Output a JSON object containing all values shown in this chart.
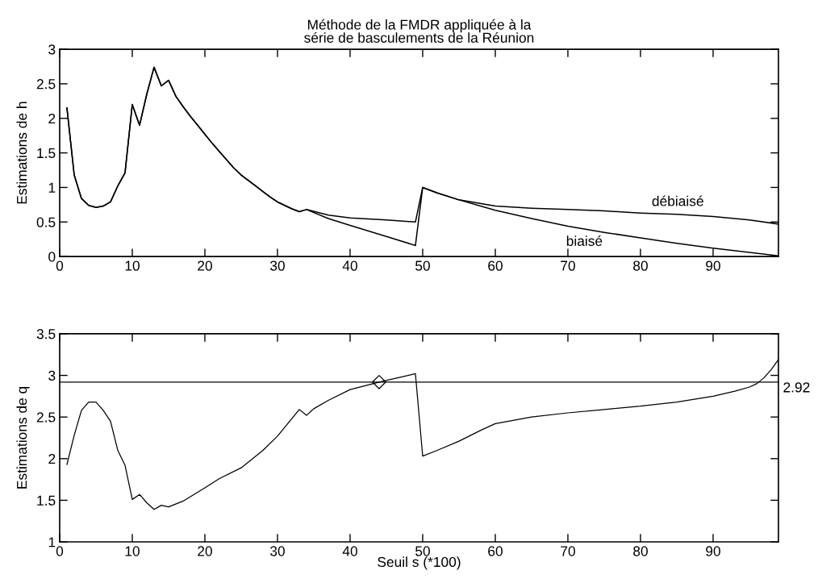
{
  "chart_data": [
    {
      "type": "line",
      "title": "Méthode de la FMDR appliquée à la\nsérie de basculements de la Réunion",
      "ylabel": "Estimations de h",
      "x": [
        1,
        2,
        3,
        4,
        5,
        6,
        7,
        8,
        9,
        10,
        11,
        12,
        13,
        14,
        15,
        16,
        17,
        18,
        19,
        20,
        21,
        22,
        23,
        24,
        25,
        26,
        27,
        28,
        29,
        30,
        31,
        32,
        33,
        34,
        37,
        40,
        45,
        49,
        50,
        52,
        55,
        60,
        65,
        70,
        75,
        80,
        85,
        90,
        95,
        99
      ],
      "series": [
        {
          "name": "débiaisé",
          "color": "#000000",
          "values": [
            2.15,
            1.18,
            0.84,
            0.74,
            0.71,
            0.73,
            0.79,
            1.02,
            1.21,
            2.2,
            1.9,
            2.35,
            2.74,
            2.47,
            2.55,
            2.32,
            2.17,
            2.03,
            1.9,
            1.77,
            1.64,
            1.52,
            1.4,
            1.28,
            1.18,
            1.1,
            1.02,
            0.94,
            0.86,
            0.79,
            0.74,
            0.69,
            0.65,
            0.68,
            0.6,
            0.56,
            0.53,
            0.5,
            1.0,
            0.92,
            0.82,
            0.73,
            0.7,
            0.68,
            0.66,
            0.63,
            0.61,
            0.58,
            0.53,
            0.47
          ]
        },
        {
          "name": "biaisé",
          "color": "#000000",
          "values": [
            2.15,
            1.18,
            0.84,
            0.74,
            0.71,
            0.73,
            0.79,
            1.02,
            1.21,
            2.2,
            1.9,
            2.35,
            2.74,
            2.47,
            2.55,
            2.32,
            2.17,
            2.03,
            1.9,
            1.77,
            1.64,
            1.52,
            1.4,
            1.28,
            1.18,
            1.1,
            1.02,
            0.94,
            0.86,
            0.79,
            0.74,
            0.69,
            0.65,
            0.68,
            0.55,
            0.45,
            0.29,
            0.16,
            1.0,
            0.92,
            0.82,
            0.67,
            0.55,
            0.44,
            0.35,
            0.27,
            0.19,
            0.12,
            0.06,
            0.01
          ]
        }
      ],
      "xlim": [
        0,
        99
      ],
      "xticks": [
        0,
        10,
        20,
        30,
        40,
        50,
        60,
        70,
        80,
        90
      ],
      "ylim": [
        0,
        3
      ],
      "yticks": [
        0,
        0.5,
        1,
        1.5,
        2,
        2.5,
        3
      ],
      "grid": false,
      "marker": "none",
      "line_style": "solid"
    },
    {
      "type": "line",
      "ylabel": "Estimations de q",
      "xlabel": "Seuil s (*100)",
      "x": [
        1,
        2,
        3,
        4,
        5,
        6,
        7,
        8,
        9,
        10,
        11,
        12,
        13,
        14,
        15,
        17,
        20,
        22,
        25,
        28,
        30,
        33,
        34,
        35,
        37,
        40,
        44,
        47,
        49,
        50,
        52,
        55,
        58,
        60,
        65,
        70,
        75,
        80,
        85,
        90,
        93,
        95,
        96,
        97,
        98,
        99
      ],
      "series": [
        {
          "color": "#000000",
          "values": [
            1.93,
            2.28,
            2.58,
            2.68,
            2.68,
            2.58,
            2.45,
            2.1,
            1.92,
            1.51,
            1.57,
            1.47,
            1.39,
            1.44,
            1.42,
            1.49,
            1.65,
            1.76,
            1.89,
            2.1,
            2.27,
            2.59,
            2.52,
            2.6,
            2.7,
            2.83,
            2.92,
            2.98,
            3.02,
            2.03,
            2.1,
            2.21,
            2.34,
            2.42,
            2.5,
            2.55,
            2.59,
            2.63,
            2.68,
            2.75,
            2.81,
            2.86,
            2.9,
            2.97,
            3.07,
            3.19
          ]
        },
        {
          "type": "scatter",
          "color": "#000000",
          "marker": "diamond",
          "x": [
            44
          ],
          "values": [
            2.92
          ]
        }
      ],
      "ref_lines": [
        {
          "axis": "y",
          "value": 2.92,
          "label": "2.92",
          "color": "#000000"
        }
      ],
      "xlim": [
        0,
        99
      ],
      "xticks": [
        0,
        10,
        20,
        30,
        40,
        50,
        60,
        70,
        80,
        90
      ],
      "ylim": [
        1,
        3.5
      ],
      "yticks": [
        1,
        1.5,
        2,
        2.5,
        3,
        3.5
      ],
      "grid": false,
      "marker": "none",
      "line_style": "solid"
    }
  ]
}
